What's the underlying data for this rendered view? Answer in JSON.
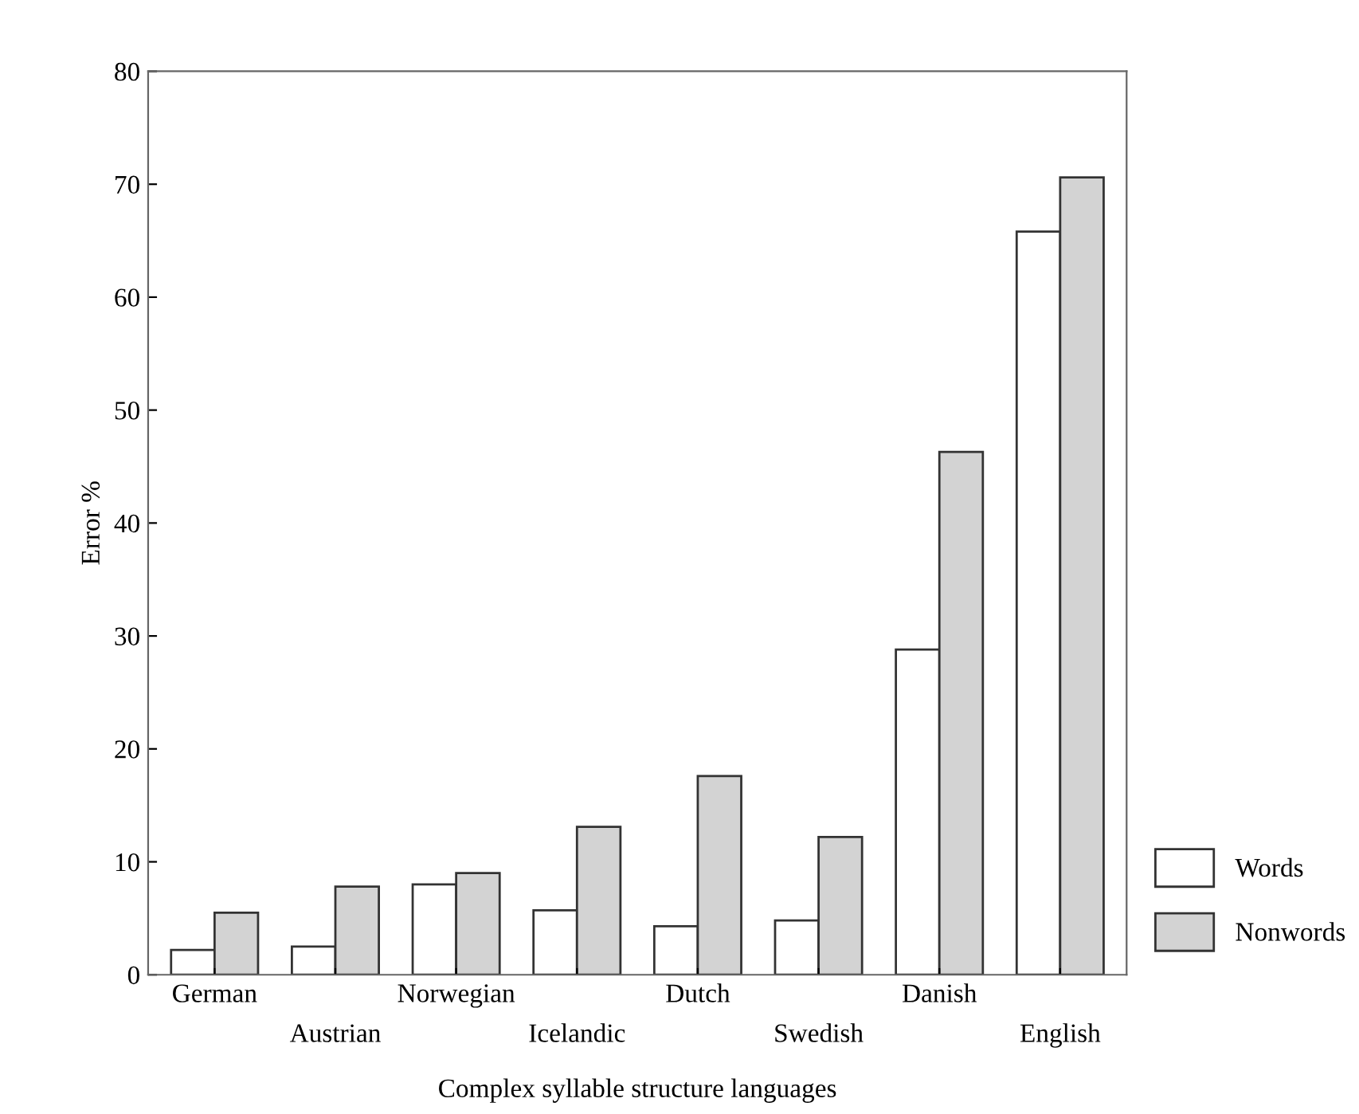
{
  "chart_data": {
    "type": "bar",
    "xlabel": "Complex syllable structure languages",
    "ylabel": "Error %",
    "categories": [
      "German",
      "Austrian",
      "Norwegian",
      "Icelandic",
      "Dutch",
      "Swedish",
      "Danish",
      "English"
    ],
    "series": [
      {
        "name": "Words",
        "color": "#ffffff",
        "values": [
          2.2,
          2.5,
          8.0,
          5.7,
          4.3,
          4.8,
          28.8,
          65.8
        ]
      },
      {
        "name": "Nonwords",
        "color": "#d3d3d3",
        "values": [
          5.5,
          7.8,
          9.0,
          13.1,
          17.6,
          12.2,
          46.3,
          70.6
        ]
      }
    ],
    "ylim": [
      0,
      80
    ],
    "yticks": [
      0,
      10,
      20,
      30,
      40,
      50,
      60,
      70,
      80
    ],
    "grid": false,
    "legend": "bottom right"
  }
}
